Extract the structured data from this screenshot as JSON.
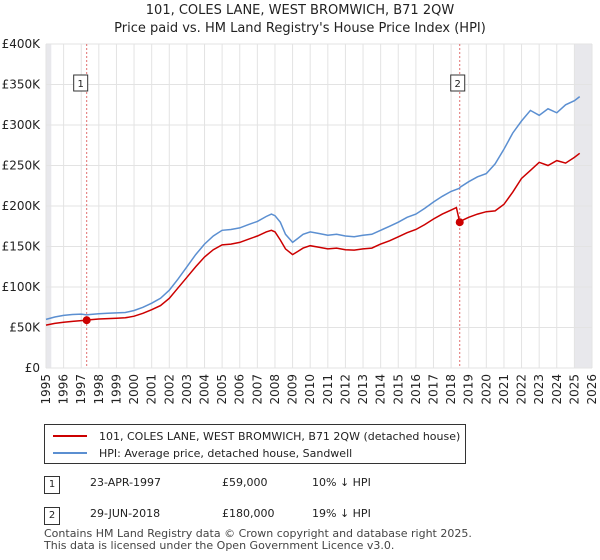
{
  "title": "101, COLES LANE, WEST BROMWICH, B71 2QW",
  "subtitle": "Price paid vs. HM Land Registry's House Price Index (HPI)",
  "legend": {
    "property": "101, COLES LANE, WEST BROMWICH, B71 2QW (detached house)",
    "hpi": "HPI: Average price, detached house, Sandwell"
  },
  "transactions": [
    {
      "num": "1",
      "date": "23-APR-1997",
      "price": "£59,000",
      "vs_hpi": "10% ↓ HPI"
    },
    {
      "num": "2",
      "date": "29-JUN-2018",
      "price": "£180,000",
      "vs_hpi": "19% ↓ HPI"
    }
  ],
  "footer": {
    "line1": "Contains HM Land Registry data © Crown copyright and database right 2025.",
    "line2": "This data is licensed under the Open Government Licence v3.0."
  },
  "chart_data": {
    "type": "line",
    "title": "101, COLES LANE, WEST BROMWICH, B71 2QW",
    "xlim": [
      1995,
      2026
    ],
    "ylim": [
      0,
      400000
    ],
    "x_ticks": [
      1995,
      1996,
      1997,
      1998,
      1999,
      2000,
      2001,
      2002,
      2003,
      2004,
      2005,
      2006,
      2007,
      2008,
      2009,
      2010,
      2011,
      2012,
      2013,
      2014,
      2015,
      2016,
      2017,
      2018,
      2019,
      2020,
      2021,
      2022,
      2023,
      2024,
      2025,
      2026
    ],
    "y_ticks": [
      {
        "value": 0,
        "label": "£0"
      },
      {
        "value": 50000,
        "label": "£50K"
      },
      {
        "value": 100000,
        "label": "£100K"
      },
      {
        "value": 150000,
        "label": "£150K"
      },
      {
        "value": 200000,
        "label": "£200K"
      },
      {
        "value": 250000,
        "label": "£250K"
      },
      {
        "value": 300000,
        "label": "£300K"
      },
      {
        "value": 350000,
        "label": "£350K"
      },
      {
        "value": 400000,
        "label": "£400K"
      }
    ],
    "shaded_ranges": [
      [
        1995,
        1995.3
      ],
      [
        2025.0,
        2026.0
      ]
    ],
    "markers": [
      {
        "label": "1",
        "x": 1997.31,
        "y": 59000
      },
      {
        "label": "2",
        "x": 2018.49,
        "y": 180000
      }
    ],
    "series": [
      {
        "name": "HPI: Average price, detached house, Sandwell",
        "color": "#5b8fd1",
        "x": [
          1995,
          1995.5,
          1996,
          1996.5,
          1997,
          1997.31,
          1997.5,
          1998,
          1998.5,
          1999,
          1999.5,
          2000,
          2000.5,
          2001,
          2001.5,
          2002,
          2002.5,
          2003,
          2003.5,
          2004,
          2004.5,
          2005,
          2005.5,
          2006,
          2006.5,
          2007,
          2007.5,
          2007.8,
          2008,
          2008.3,
          2008.6,
          2009,
          2009.3,
          2009.6,
          2010,
          2010.5,
          2011,
          2011.5,
          2012,
          2012.5,
          2013,
          2013.5,
          2014,
          2014.5,
          2015,
          2015.5,
          2016,
          2016.5,
          2017,
          2017.5,
          2018,
          2018.49,
          2018.5,
          2019,
          2019.5,
          2020,
          2020.5,
          2021,
          2021.5,
          2022,
          2022.5,
          2023,
          2023.5,
          2024,
          2024.5,
          2025,
          2025.3
        ],
        "y": [
          60000,
          63000,
          65000,
          66000,
          66500,
          65500,
          66000,
          67000,
          67500,
          68000,
          68500,
          71000,
          75000,
          80000,
          86000,
          96000,
          110000,
          125000,
          140000,
          153000,
          163000,
          170000,
          171000,
          173000,
          177000,
          181000,
          187000,
          190000,
          188000,
          180000,
          165000,
          155000,
          160000,
          165000,
          168000,
          166000,
          164000,
          165000,
          163000,
          162000,
          164000,
          165000,
          170000,
          175000,
          180000,
          186000,
          190000,
          197000,
          205000,
          212000,
          218000,
          222000,
          223000,
          230000,
          236000,
          240000,
          252000,
          270000,
          290000,
          305000,
          318000,
          312000,
          320000,
          315000,
          325000,
          330000,
          335000
        ]
      },
      {
        "name": "101, COLES LANE, WEST BROMWICH, B71 2QW (detached house)",
        "color": "#cc0000",
        "x": [
          1995,
          1995.5,
          1996,
          1996.5,
          1997,
          1997.31,
          1997.5,
          1998,
          1998.5,
          1999,
          1999.5,
          2000,
          2000.5,
          2001,
          2001.5,
          2002,
          2002.5,
          2003,
          2003.5,
          2004,
          2004.5,
          2005,
          2005.5,
          2006,
          2006.5,
          2007,
          2007.5,
          2007.8,
          2008,
          2008.3,
          2008.6,
          2009,
          2009.3,
          2009.6,
          2010,
          2010.5,
          2011,
          2011.5,
          2012,
          2012.5,
          2013,
          2013.5,
          2014,
          2014.5,
          2015,
          2015.5,
          2016,
          2016.5,
          2017,
          2017.5,
          2018,
          2018.3,
          2018.49,
          2018.7,
          2019,
          2019.5,
          2020,
          2020.5,
          2021,
          2021.5,
          2022,
          2022.5,
          2023,
          2023.5,
          2024,
          2024.5,
          2025,
          2025.3
        ],
        "y": [
          53000,
          55000,
          56500,
          57500,
          58500,
          59000,
          59500,
          60500,
          61000,
          61500,
          62000,
          64000,
          67500,
          72000,
          77000,
          86000,
          99000,
          112000,
          125000,
          137000,
          146000,
          152000,
          153000,
          155000,
          159000,
          163000,
          168000,
          170000,
          168000,
          158000,
          147000,
          140000,
          144000,
          148000,
          151000,
          149000,
          147000,
          148000,
          146000,
          145500,
          147000,
          148000,
          153000,
          157000,
          162000,
          167000,
          171000,
          177000,
          184000,
          190000,
          195000,
          198000,
          180000,
          183000,
          186000,
          190000,
          193000,
          194000,
          202000,
          217000,
          234000,
          244000,
          254000,
          250000,
          256000,
          253000,
          260000,
          265000
        ]
      }
    ]
  }
}
